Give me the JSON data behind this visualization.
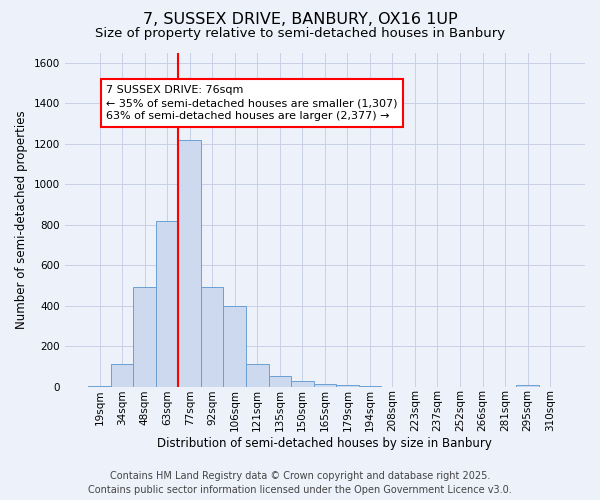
{
  "title": "7, SUSSEX DRIVE, BANBURY, OX16 1UP",
  "subtitle": "Size of property relative to semi-detached houses in Banbury",
  "xlabel": "Distribution of semi-detached houses by size in Banbury",
  "ylabel": "Number of semi-detached properties",
  "bins": [
    "19sqm",
    "34sqm",
    "48sqm",
    "63sqm",
    "77sqm",
    "92sqm",
    "106sqm",
    "121sqm",
    "135sqm",
    "150sqm",
    "165sqm",
    "179sqm",
    "194sqm",
    "208sqm",
    "223sqm",
    "237sqm",
    "252sqm",
    "266sqm",
    "281sqm",
    "295sqm",
    "310sqm"
  ],
  "values": [
    5,
    110,
    490,
    820,
    1220,
    490,
    400,
    110,
    50,
    25,
    15,
    10,
    5,
    0,
    0,
    0,
    0,
    0,
    0,
    10,
    0
  ],
  "bar_color": "#ccd9ee",
  "bar_edge_color": "#6b9fd4",
  "grid_color": "#c8d0e8",
  "background_color": "#edf1fa",
  "vline_x_index": 4,
  "vline_color": "red",
  "annotation_line1": "7 SUSSEX DRIVE: 76sqm",
  "annotation_line2": "← 35% of semi-detached houses are smaller (1,307)",
  "annotation_line3": "63% of semi-detached houses are larger (2,377) →",
  "annotation_box_color": "white",
  "annotation_box_edge_color": "red",
  "footer_line1": "Contains HM Land Registry data © Crown copyright and database right 2025.",
  "footer_line2": "Contains public sector information licensed under the Open Government Licence v3.0.",
  "ylim": [
    0,
    1650
  ],
  "yticks": [
    0,
    200,
    400,
    600,
    800,
    1000,
    1200,
    1400,
    1600
  ],
  "title_fontsize": 11.5,
  "subtitle_fontsize": 9.5,
  "axis_label_fontsize": 8.5,
  "tick_fontsize": 7.5,
  "annotation_fontsize": 8,
  "footer_fontsize": 7
}
